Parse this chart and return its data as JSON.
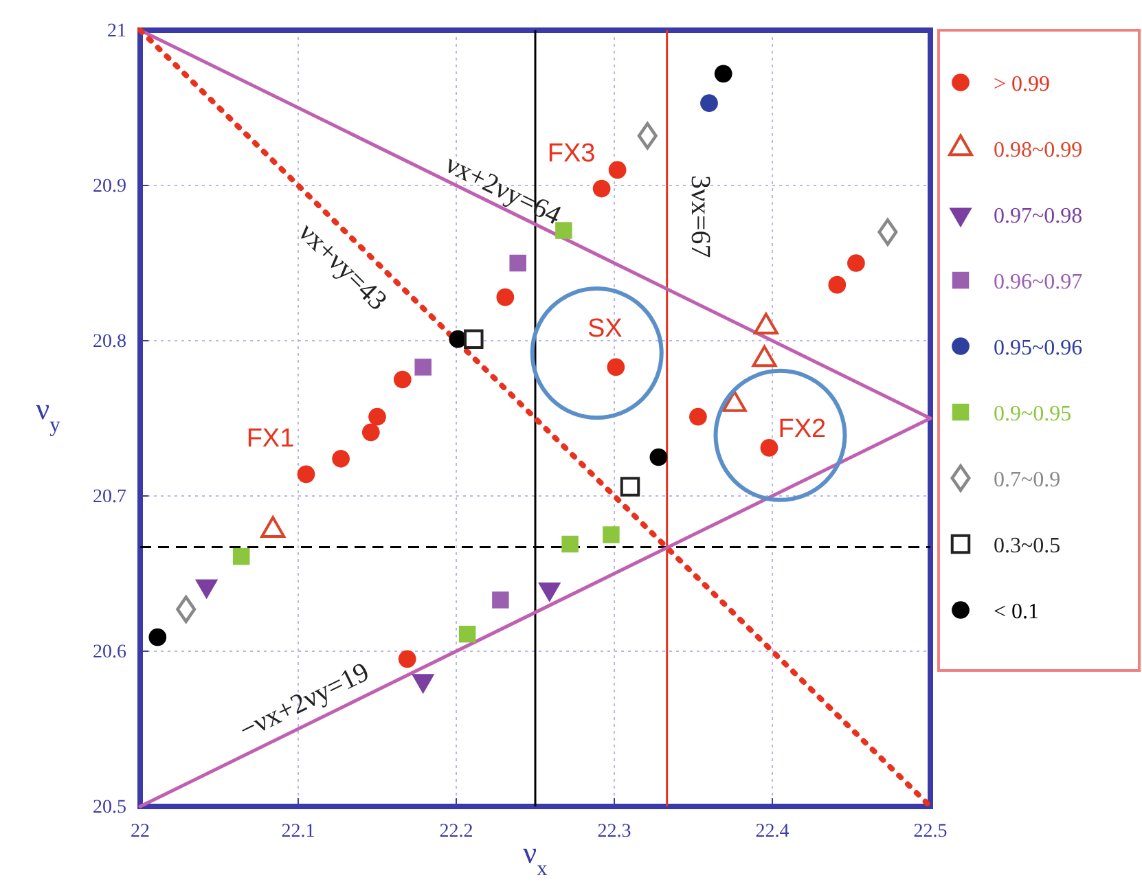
{
  "chart_data": {
    "type": "scatter",
    "xlabel": "ν$_{x}$",
    "ylabel": "ν$_{y}$",
    "xlim": [
      22,
      22.5
    ],
    "ylim": [
      20.5,
      21
    ],
    "xticks": [
      22,
      22.1,
      22.2,
      22.3,
      22.4,
      22.5
    ],
    "yticks": [
      20.5,
      20.6,
      20.7,
      20.8,
      20.9,
      21
    ],
    "grid": true,
    "legend": "right",
    "series": [
      {
        "name": "> 0.99",
        "color": "#e8321e",
        "marker": "circle",
        "x": [
          22.105,
          22.127,
          22.146,
          22.15,
          22.166,
          22.231,
          22.169,
          22.292,
          22.302,
          22.301,
          22.353,
          22.398,
          22.441,
          22.453
        ],
        "values": [
          20.714,
          20.724,
          20.741,
          20.751,
          20.775,
          20.828,
          20.595,
          20.898,
          20.91,
          20.783,
          20.751,
          20.731,
          20.836,
          20.85
        ]
      },
      {
        "name": "0.98~0.99",
        "color": "#d9442a",
        "marker": "triangle-open",
        "x": [
          22.084,
          22.376,
          22.395,
          22.396
        ],
        "values": [
          20.678,
          20.759,
          20.788,
          20.809
        ]
      },
      {
        "name": "0.97~0.98",
        "color": "#7a3fa0",
        "marker": "triangle-down",
        "x": [
          22.042,
          22.179,
          22.259
        ],
        "values": [
          20.642,
          20.581,
          20.64
        ]
      },
      {
        "name": "0.96~0.97",
        "color": "#9b5fb0",
        "marker": "square",
        "x": [
          22.179,
          22.228,
          22.239
        ],
        "values": [
          20.783,
          20.633,
          20.85
        ]
      },
      {
        "name": "0.95~0.96",
        "color": "#2e3f9e",
        "marker": "circle",
        "x": [
          22.36
        ],
        "values": [
          20.953
        ]
      },
      {
        "name": "0.9~0.95",
        "color": "#8cc63f",
        "marker": "square",
        "x": [
          22.064,
          22.207,
          22.268,
          22.272,
          22.298
        ],
        "values": [
          20.661,
          20.611,
          20.871,
          20.669,
          20.675
        ]
      },
      {
        "name": "0.7~0.9",
        "color": "#888888",
        "marker": "diamond-open",
        "x": [
          22.029,
          22.321,
          22.473
        ],
        "values": [
          20.627,
          20.932,
          20.87
        ]
      },
      {
        "name": "0.3~0.5",
        "color": "#222222",
        "marker": "square-open",
        "x": [
          22.211,
          22.31
        ],
        "values": [
          20.801,
          20.706
        ]
      },
      {
        "name": "< 0.1",
        "color": "#000000",
        "marker": "circle",
        "x": [
          22.011,
          22.201,
          22.328,
          22.369
        ],
        "values": [
          20.609,
          20.801,
          20.725,
          20.972
        ]
      },
      {
        "name": "νx+2νy=64",
        "type": "line",
        "color": "#c060b0",
        "line_style": "solid",
        "x": [
          22,
          22.5
        ],
        "values": [
          21,
          20.75
        ]
      },
      {
        "name": "νx+νy=43",
        "type": "line",
        "color": "#e8321e",
        "line_style": "dotted",
        "x": [
          22,
          22.5
        ],
        "values": [
          21,
          20.5
        ]
      },
      {
        "name": "−νx+2νy=19",
        "type": "line",
        "color": "#c060b0",
        "line_style": "solid",
        "x": [
          22,
          22.5
        ],
        "values": [
          20.5,
          20.75
        ]
      }
    ],
    "ref_lines": [
      {
        "axis": "x",
        "value": 22.25,
        "color": "#000000",
        "line_style": "solid"
      },
      {
        "axis": "x",
        "value": 22.333333,
        "color": "#e8321e",
        "line_style": "solid"
      },
      {
        "axis": "y",
        "value": 20.667,
        "color": "#000000",
        "line_style": "dashed"
      }
    ],
    "annotations": [
      "3νx=67",
      {
        "text": "FX1",
        "x": 22.105,
        "y": 20.714
      },
      {
        "text": "FX3",
        "x": 22.292,
        "y": 20.898
      },
      {
        "text": "SX",
        "x": 22.301,
        "y": 20.783
      },
      {
        "text": "FX2",
        "x": 22.398,
        "y": 20.731
      }
    ]
  }
}
